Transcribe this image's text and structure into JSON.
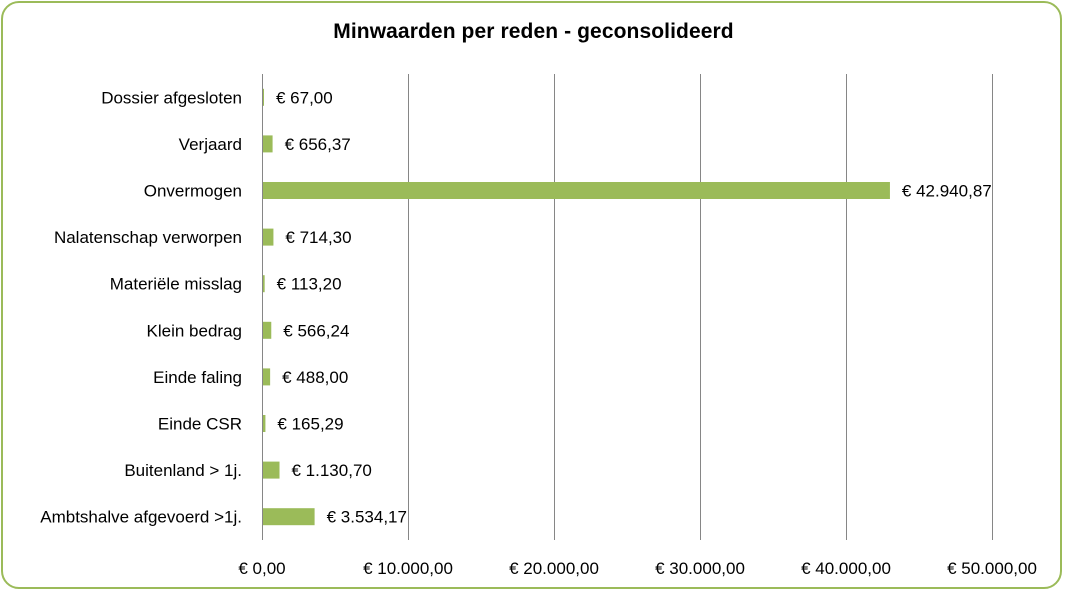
{
  "chart_data": {
    "type": "bar",
    "orientation": "horizontal",
    "title": "Minwaarden per reden - geconsolideerd",
    "xlabel": "",
    "ylabel": "",
    "categories": [
      "Dossier afgesloten",
      "Verjaard",
      "Onvermogen",
      "Nalatenschap verworpen",
      "Materiële misslag",
      "Klein bedrag",
      "Einde faling",
      "Einde CSR",
      "Buitenland > 1j.",
      "Ambtshalve afgevoerd >1j."
    ],
    "values": [
      67.0,
      656.37,
      42940.87,
      714.3,
      113.2,
      566.24,
      488.0,
      165.29,
      1130.7,
      3534.17
    ],
    "data_labels": [
      "€ 67,00",
      "€ 656,37",
      "€ 42.940,87",
      "€ 714,30",
      "€ 113,20",
      "€ 566,24",
      "€ 488,00",
      "€ 165,29",
      "€ 1.130,70",
      "€ 3.534,17"
    ],
    "xlim": [
      0,
      50000
    ],
    "x_ticks": [
      0,
      10000,
      20000,
      30000,
      40000,
      50000
    ],
    "x_tick_labels": [
      "€ 0,00",
      "€ 10.000,00",
      "€ 20.000,00",
      "€ 30.000,00",
      "€ 40.000,00",
      "€ 50.000,00"
    ],
    "grid": "vertical",
    "legend": "none",
    "colors": {
      "bar": "#9BBB59",
      "border": "#9BBB59",
      "grid": "#868686",
      "text": "#000000"
    }
  }
}
